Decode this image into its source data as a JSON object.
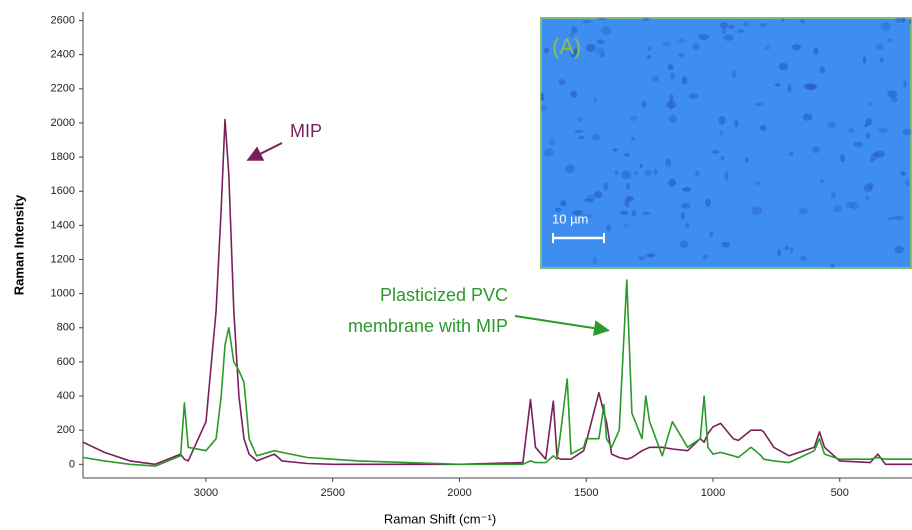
{
  "chart_data": {
    "type": "line",
    "xlabel": "Raman Shift (cm⁻¹)",
    "ylabel": "Raman Intensity",
    "x": [
      3485,
      3400,
      3300,
      3200,
      3100,
      3085,
      3070,
      3000,
      2960,
      2940,
      2925,
      2910,
      2890,
      2870,
      2850,
      2830,
      2800,
      2730,
      2700,
      2600,
      2500,
      2400,
      2000,
      1750,
      1720,
      1700,
      1660,
      1630,
      1615,
      1600,
      1575,
      1560,
      1510,
      1500,
      1450,
      1430,
      1420,
      1400,
      1370,
      1340,
      1320,
      1280,
      1265,
      1250,
      1200,
      1160,
      1100,
      1050,
      1035,
      1020,
      1000,
      970,
      920,
      900,
      850,
      810,
      800,
      760,
      700,
      600,
      580,
      560,
      500,
      380,
      350,
      320,
      215
    ],
    "series": [
      {
        "name": "MIP",
        "color": "#7b1f5a",
        "values": [
          130,
          70,
          20,
          0,
          60,
          30,
          20,
          250,
          900,
          1500,
          2020,
          1700,
          900,
          400,
          150,
          60,
          20,
          60,
          20,
          5,
          0,
          0,
          0,
          10,
          380,
          100,
          30,
          370,
          40,
          30,
          30,
          30,
          80,
          130,
          420,
          300,
          250,
          60,
          40,
          30,
          40,
          80,
          90,
          100,
          100,
          90,
          80,
          150,
          130,
          180,
          220,
          240,
          150,
          140,
          200,
          200,
          190,
          100,
          50,
          100,
          190,
          100,
          20,
          10,
          60,
          0,
          0
        ]
      },
      {
        "name": "Plasticized PVC membrane with MIP",
        "color": "#2a9a2a",
        "values": [
          40,
          20,
          0,
          -10,
          50,
          360,
          100,
          80,
          150,
          400,
          700,
          800,
          600,
          550,
          480,
          150,
          50,
          80,
          70,
          40,
          30,
          20,
          0,
          0,
          20,
          10,
          10,
          50,
          30,
          200,
          500,
          60,
          100,
          150,
          150,
          350,
          150,
          100,
          200,
          1080,
          300,
          150,
          400,
          250,
          50,
          250,
          100,
          150,
          400,
          100,
          60,
          70,
          50,
          40,
          100,
          50,
          30,
          20,
          10,
          80,
          150,
          60,
          30,
          30,
          40,
          30,
          30
        ]
      }
    ],
    "xlim": [
      3485,
      215
    ],
    "xticks": [
      3000,
      2500,
      2000,
      1500,
      1000,
      500
    ],
    "ylim": [
      -80,
      2650
    ],
    "yticks": [
      0,
      200,
      400,
      600,
      800,
      1000,
      1200,
      1400,
      1600,
      1800,
      2000,
      2200,
      2400,
      2600
    ],
    "inset": {
      "label": "(A)",
      "scale_bar": "10 µm"
    }
  }
}
